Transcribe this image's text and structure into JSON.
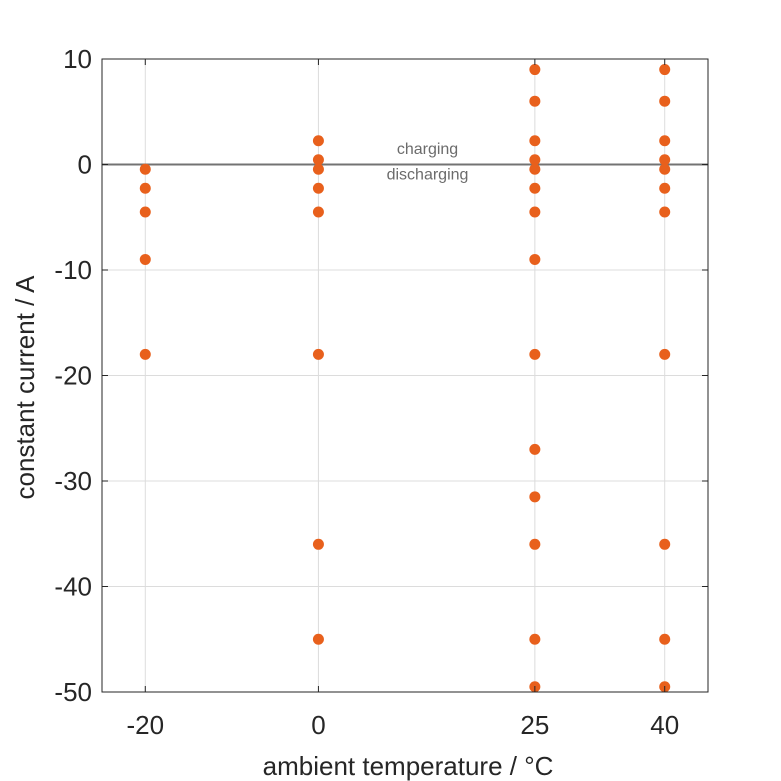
{
  "chart_data": {
    "type": "scatter",
    "xlabel": "ambient temperature / °C",
    "ylabel": "constant current / A",
    "x_ticks": [
      {
        "value": -20,
        "label": "-20"
      },
      {
        "value": 0,
        "label": "0"
      },
      {
        "value": 25,
        "label": "25"
      },
      {
        "value": 40,
        "label": "40"
      }
    ],
    "y_ticks": [
      {
        "value": 10,
        "label": "10"
      },
      {
        "value": 0,
        "label": "0"
      },
      {
        "value": -10,
        "label": "-10"
      },
      {
        "value": -20,
        "label": "-20"
      },
      {
        "value": -30,
        "label": "-30"
      },
      {
        "value": -40,
        "label": "-40"
      },
      {
        "value": -50,
        "label": "-50"
      }
    ],
    "xlim": [
      -25,
      45
    ],
    "ylim": [
      -50,
      10
    ],
    "grid": true,
    "reference_line": {
      "y": 0,
      "color": "#737373"
    },
    "annotations": [
      {
        "text": "charging",
        "x": 12.6,
        "y": 1.0
      },
      {
        "text": "discharging",
        "x": 12.6,
        "y": -1.4
      }
    ],
    "marker_color": "#e8601c",
    "series": [
      {
        "points": [
          {
            "x": -20,
            "y": -0.45
          },
          {
            "x": -20,
            "y": -2.25
          },
          {
            "x": -20,
            "y": -4.5
          },
          {
            "x": -20,
            "y": -9
          },
          {
            "x": -20,
            "y": -18
          },
          {
            "x": 0,
            "y": 2.25
          },
          {
            "x": 0,
            "y": 0.45
          },
          {
            "x": 0,
            "y": -0.45
          },
          {
            "x": 0,
            "y": -2.25
          },
          {
            "x": 0,
            "y": -4.5
          },
          {
            "x": 0,
            "y": -18
          },
          {
            "x": 0,
            "y": -36
          },
          {
            "x": 0,
            "y": -45
          },
          {
            "x": 25,
            "y": 9
          },
          {
            "x": 25,
            "y": 6
          },
          {
            "x": 25,
            "y": 2.25
          },
          {
            "x": 25,
            "y": 0.45
          },
          {
            "x": 25,
            "y": -0.45
          },
          {
            "x": 25,
            "y": -2.25
          },
          {
            "x": 25,
            "y": -4.5
          },
          {
            "x": 25,
            "y": -9
          },
          {
            "x": 25,
            "y": -18
          },
          {
            "x": 25,
            "y": -27
          },
          {
            "x": 25,
            "y": -31.5
          },
          {
            "x": 25,
            "y": -36
          },
          {
            "x": 25,
            "y": -45
          },
          {
            "x": 25,
            "y": -49.5
          },
          {
            "x": 40,
            "y": 9
          },
          {
            "x": 40,
            "y": 6
          },
          {
            "x": 40,
            "y": 2.25
          },
          {
            "x": 40,
            "y": 0.45
          },
          {
            "x": 40,
            "y": -0.45
          },
          {
            "x": 40,
            "y": -2.25
          },
          {
            "x": 40,
            "y": -4.5
          },
          {
            "x": 40,
            "y": -18
          },
          {
            "x": 40,
            "y": -36
          },
          {
            "x": 40,
            "y": -45
          },
          {
            "x": 40,
            "y": -49.5
          }
        ]
      }
    ]
  }
}
